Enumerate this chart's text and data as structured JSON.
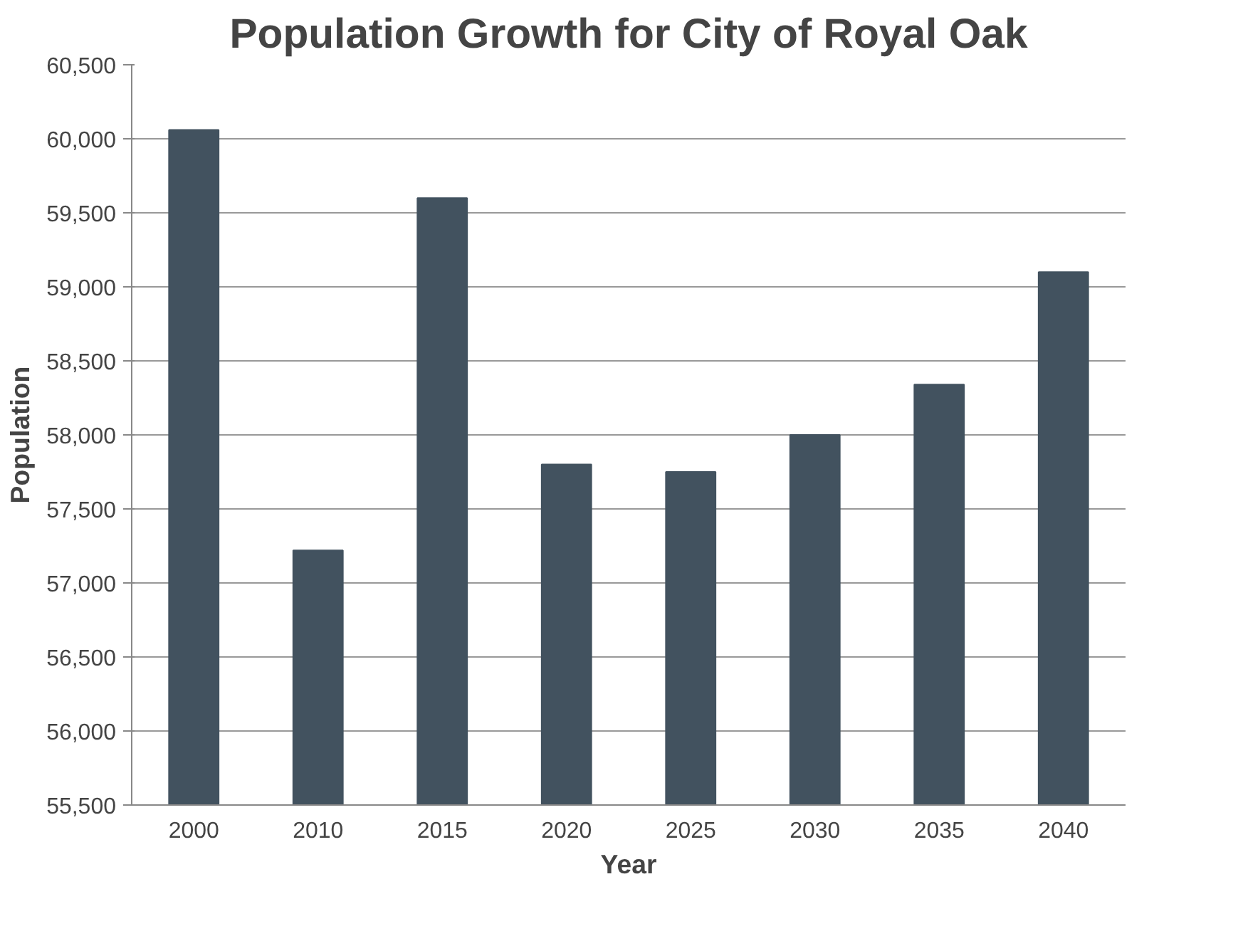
{
  "chart_data": {
    "type": "bar",
    "title": "Population Growth for City of Royal Oak",
    "xlabel": "Year",
    "ylabel": "Population",
    "categories": [
      "2000",
      "2010",
      "2015",
      "2020",
      "2025",
      "2030",
      "2035",
      "2040"
    ],
    "values": [
      60060,
      57220,
      59600,
      57800,
      57750,
      58000,
      58340,
      59100
    ],
    "color": "#42525f",
    "ylim": [
      55500,
      60500
    ],
    "yticks": [
      {
        "value": 55500,
        "label": "55,500"
      },
      {
        "value": 56000,
        "label": "56,000"
      },
      {
        "value": 56500,
        "label": "56,500"
      },
      {
        "value": 57000,
        "label": "57,000"
      },
      {
        "value": 57500,
        "label": "57,500"
      },
      {
        "value": 58000,
        "label": "58,000"
      },
      {
        "value": 58500,
        "label": "58,500"
      },
      {
        "value": 59000,
        "label": "59,000"
      },
      {
        "value": 59500,
        "label": "59,500"
      },
      {
        "value": 60000,
        "label": "60,000"
      },
      {
        "value": 60500,
        "label": "60,500"
      }
    ],
    "grid": "y"
  }
}
